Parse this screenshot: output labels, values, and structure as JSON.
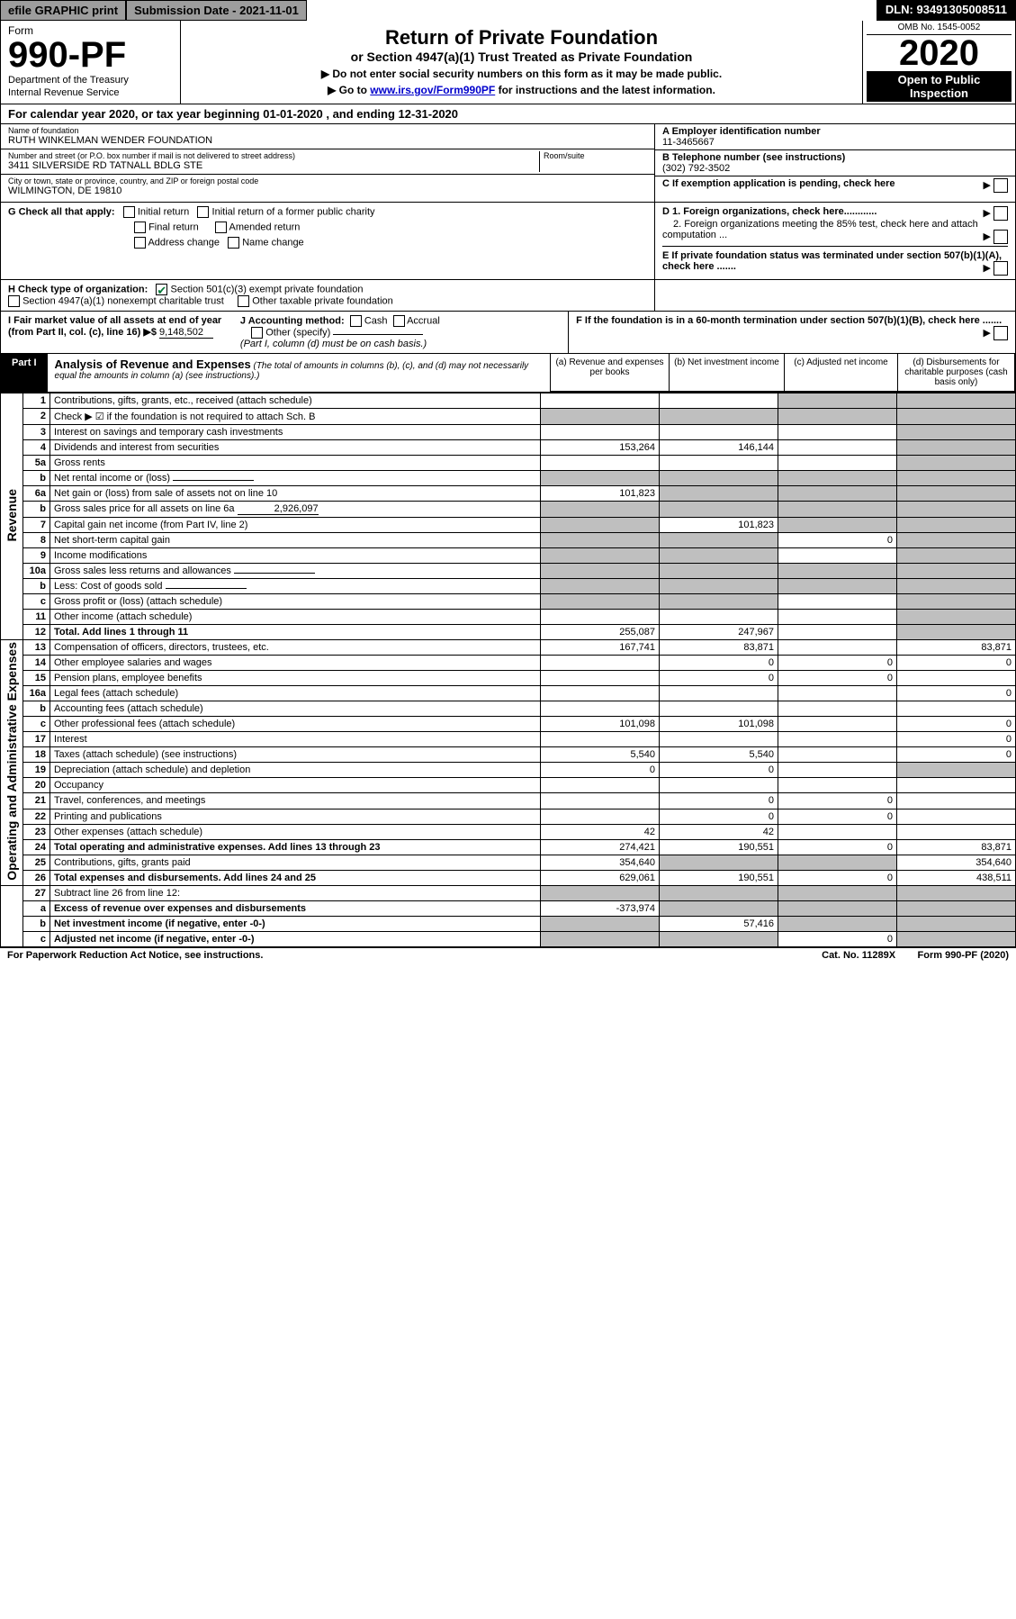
{
  "topbar": {
    "efile": "efile GRAPHIC print",
    "submission": "Submission Date - 2021-11-01",
    "dln": "DLN: 93491305008511"
  },
  "header": {
    "form_label": "Form",
    "form_number": "990-PF",
    "dept": "Department of the Treasury",
    "irs": "Internal Revenue Service",
    "title": "Return of Private Foundation",
    "subtitle": "or Section 4947(a)(1) Trust Treated as Private Foundation",
    "note1": "▶ Do not enter social security numbers on this form as it may be made public.",
    "note2_prefix": "▶ Go to ",
    "note2_link": "www.irs.gov/Form990PF",
    "note2_suffix": " for instructions and the latest information.",
    "omb": "OMB No. 1545-0052",
    "year": "2020",
    "open": "Open to Public Inspection"
  },
  "calendar": {
    "prefix": "For calendar year 2020, or tax year beginning ",
    "begin": "01-01-2020",
    "mid": " , and ending ",
    "end": "12-31-2020"
  },
  "info": {
    "name_lbl": "Name of foundation",
    "name": "RUTH WINKELMAN WENDER FOUNDATION",
    "addr_lbl": "Number and street (or P.O. box number if mail is not delivered to street address)",
    "addr": "3411 SILVERSIDE RD TATNALL BDLG STE",
    "room_lbl": "Room/suite",
    "city_lbl": "City or town, state or province, country, and ZIP or foreign postal code",
    "city": "WILMINGTON, DE  19810",
    "ein_lbl": "A Employer identification number",
    "ein": "11-3465667",
    "phone_lbl": "B Telephone number (see instructions)",
    "phone": "(302) 792-3502",
    "c_lbl": "C If exemption application is pending, check here"
  },
  "g": {
    "label": "G Check all that apply:",
    "initial": "Initial return",
    "initial_former": "Initial return of a former public charity",
    "final": "Final return",
    "amended": "Amended return",
    "address": "Address change",
    "name": "Name change",
    "d1": "D 1. Foreign organizations, check here............",
    "d2": "2. Foreign organizations meeting the 85% test, check here and attach computation ...",
    "e": "E  If private foundation status was terminated under section 507(b)(1)(A), check here ......."
  },
  "h": {
    "label": "H Check type of organization:",
    "s501": "Section 501(c)(3) exempt private foundation",
    "s4947": "Section 4947(a)(1) nonexempt charitable trust",
    "other": "Other taxable private foundation"
  },
  "i": {
    "label": "I Fair market value of all assets at end of year (from Part II, col. (c), line 16) ▶$ ",
    "value": "9,148,502"
  },
  "j": {
    "label": "J Accounting method:",
    "cash": "Cash",
    "accrual": "Accrual",
    "other": "Other (specify)",
    "note": "(Part I, column (d) must be on cash basis.)"
  },
  "f": {
    "label": "F  If the foundation is in a 60-month termination under section 507(b)(1)(B), check here ......."
  },
  "part1": {
    "label": "Part I",
    "title": "Analysis of Revenue and Expenses",
    "note": " (The total of amounts in columns (b), (c), and (d) may not necessarily equal the amounts in column (a) (see instructions).)",
    "col_a": "(a)  Revenue and expenses per books",
    "col_b": "(b)  Net investment income",
    "col_c": "(c)  Adjusted net income",
    "col_d": "(d)  Disbursements for charitable purposes (cash basis only)"
  },
  "side": {
    "revenue": "Revenue",
    "expenses": "Operating and Administrative Expenses"
  },
  "rows": [
    {
      "n": "1",
      "d": "Contributions, gifts, grants, etc., received (attach schedule)",
      "a": "",
      "b": "",
      "c": "grey",
      "dd": "grey"
    },
    {
      "n": "2",
      "d": "Check ▶ ☑ if the foundation is not required to attach Sch. B",
      "a": "grey",
      "b": "grey",
      "c": "grey",
      "dd": "grey",
      "bold_not": true
    },
    {
      "n": "3",
      "d": "Interest on savings and temporary cash investments",
      "a": "",
      "b": "",
      "c": "",
      "dd": "grey"
    },
    {
      "n": "4",
      "d": "Dividends and interest from securities",
      "a": "153,264",
      "b": "146,144",
      "c": "",
      "dd": "grey"
    },
    {
      "n": "5a",
      "d": "Gross rents",
      "a": "",
      "b": "",
      "c": "",
      "dd": "grey"
    },
    {
      "n": "b",
      "d": "Net rental income or (loss)",
      "a": "grey",
      "b": "grey",
      "c": "grey",
      "dd": "grey",
      "inline": true
    },
    {
      "n": "6a",
      "d": "Net gain or (loss) from sale of assets not on line 10",
      "a": "101,823",
      "b": "grey",
      "c": "grey",
      "dd": "grey"
    },
    {
      "n": "b",
      "d": "Gross sales price for all assets on line 6a",
      "a": "grey",
      "b": "grey",
      "c": "grey",
      "dd": "grey",
      "inline": true,
      "inline_val": "2,926,097"
    },
    {
      "n": "7",
      "d": "Capital gain net income (from Part IV, line 2)",
      "a": "grey",
      "b": "101,823",
      "c": "grey",
      "dd": "grey"
    },
    {
      "n": "8",
      "d": "Net short-term capital gain",
      "a": "grey",
      "b": "grey",
      "c": "0",
      "dd": "grey"
    },
    {
      "n": "9",
      "d": "Income modifications",
      "a": "grey",
      "b": "grey",
      "c": "",
      "dd": "grey"
    },
    {
      "n": "10a",
      "d": "Gross sales less returns and allowances",
      "a": "grey",
      "b": "grey",
      "c": "grey",
      "dd": "grey",
      "inline": true
    },
    {
      "n": "b",
      "d": "Less: Cost of goods sold",
      "a": "grey",
      "b": "grey",
      "c": "grey",
      "dd": "grey",
      "inline": true
    },
    {
      "n": "c",
      "d": "Gross profit or (loss) (attach schedule)",
      "a": "grey",
      "b": "grey",
      "c": "",
      "dd": "grey"
    },
    {
      "n": "11",
      "d": "Other income (attach schedule)",
      "a": "",
      "b": "",
      "c": "",
      "dd": "grey"
    },
    {
      "n": "12",
      "d": "Total. Add lines 1 through 11",
      "a": "255,087",
      "b": "247,967",
      "c": "",
      "dd": "grey",
      "bold": true
    }
  ],
  "rows2": [
    {
      "n": "13",
      "d": "Compensation of officers, directors, trustees, etc.",
      "a": "167,741",
      "b": "83,871",
      "c": "",
      "dd": "83,871"
    },
    {
      "n": "14",
      "d": "Other employee salaries and wages",
      "a": "",
      "b": "0",
      "c": "0",
      "dd": "0"
    },
    {
      "n": "15",
      "d": "Pension plans, employee benefits",
      "a": "",
      "b": "0",
      "c": "0",
      "dd": ""
    },
    {
      "n": "16a",
      "d": "Legal fees (attach schedule)",
      "a": "",
      "b": "",
      "c": "",
      "dd": "0"
    },
    {
      "n": "b",
      "d": "Accounting fees (attach schedule)",
      "a": "",
      "b": "",
      "c": "",
      "dd": ""
    },
    {
      "n": "c",
      "d": "Other professional fees (attach schedule)",
      "a": "101,098",
      "b": "101,098",
      "c": "",
      "dd": "0"
    },
    {
      "n": "17",
      "d": "Interest",
      "a": "",
      "b": "",
      "c": "",
      "dd": "0"
    },
    {
      "n": "18",
      "d": "Taxes (attach schedule) (see instructions)",
      "a": "5,540",
      "b": "5,540",
      "c": "",
      "dd": "0"
    },
    {
      "n": "19",
      "d": "Depreciation (attach schedule) and depletion",
      "a": "0",
      "b": "0",
      "c": "",
      "dd": "grey"
    },
    {
      "n": "20",
      "d": "Occupancy",
      "a": "",
      "b": "",
      "c": "",
      "dd": ""
    },
    {
      "n": "21",
      "d": "Travel, conferences, and meetings",
      "a": "",
      "b": "0",
      "c": "0",
      "dd": ""
    },
    {
      "n": "22",
      "d": "Printing and publications",
      "a": "",
      "b": "0",
      "c": "0",
      "dd": ""
    },
    {
      "n": "23",
      "d": "Other expenses (attach schedule)",
      "a": "42",
      "b": "42",
      "c": "",
      "dd": ""
    },
    {
      "n": "24",
      "d": "Total operating and administrative expenses. Add lines 13 through 23",
      "a": "274,421",
      "b": "190,551",
      "c": "0",
      "dd": "83,871",
      "bold": true
    },
    {
      "n": "25",
      "d": "Contributions, gifts, grants paid",
      "a": "354,640",
      "b": "grey",
      "c": "grey",
      "dd": "354,640"
    },
    {
      "n": "26",
      "d": "Total expenses and disbursements. Add lines 24 and 25",
      "a": "629,061",
      "b": "190,551",
      "c": "0",
      "dd": "438,511",
      "bold": true
    }
  ],
  "rows3": [
    {
      "n": "27",
      "d": "Subtract line 26 from line 12:",
      "a": "grey",
      "b": "grey",
      "c": "grey",
      "dd": "grey"
    },
    {
      "n": "a",
      "d": "Excess of revenue over expenses and disbursements",
      "a": "-373,974",
      "b": "grey",
      "c": "grey",
      "dd": "grey",
      "bold": true
    },
    {
      "n": "b",
      "d": "Net investment income (if negative, enter -0-)",
      "a": "grey",
      "b": "57,416",
      "c": "grey",
      "dd": "grey",
      "bold": true
    },
    {
      "n": "c",
      "d": "Adjusted net income (if negative, enter -0-)",
      "a": "grey",
      "b": "grey",
      "c": "0",
      "dd": "grey",
      "bold": true
    }
  ],
  "footer": {
    "left": "For Paperwork Reduction Act Notice, see instructions.",
    "mid": "Cat. No. 11289X",
    "right": "Form 990-PF (2020)"
  }
}
